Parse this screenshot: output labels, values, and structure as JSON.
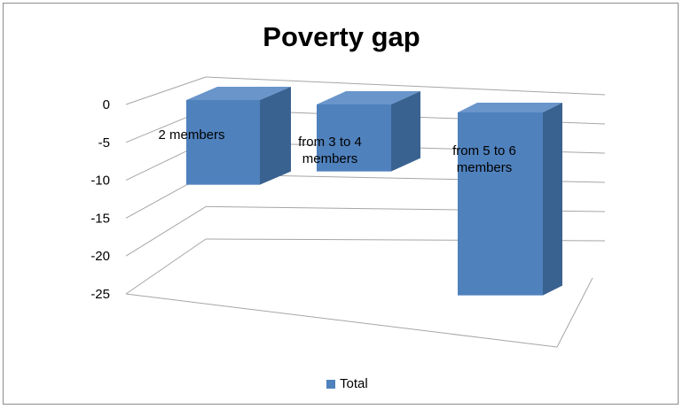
{
  "chart_data": {
    "type": "bar",
    "title": "Poverty gap",
    "categories": [
      "2 members",
      "from 3 to 4 members",
      "from 5 to 6 members"
    ],
    "label_lines": [
      [
        "2 members"
      ],
      [
        "from 3 to 4",
        "members"
      ],
      [
        "from 5 to 6",
        "members"
      ]
    ],
    "series": [
      {
        "name": "Total",
        "values": [
          -10.4,
          -8.9,
          -24.6
        ]
      }
    ],
    "y_ticks": [
      "0",
      "-5",
      "-10",
      "-15",
      "-20",
      "-25"
    ],
    "ylim": [
      -25,
      0
    ],
    "grid": true,
    "three_d": true,
    "legend_position": "bottom",
    "colors": {
      "front": "#4f81bd",
      "side": "#3a6290",
      "top": "#6a95cb",
      "grid": "#a6a6a6"
    }
  }
}
